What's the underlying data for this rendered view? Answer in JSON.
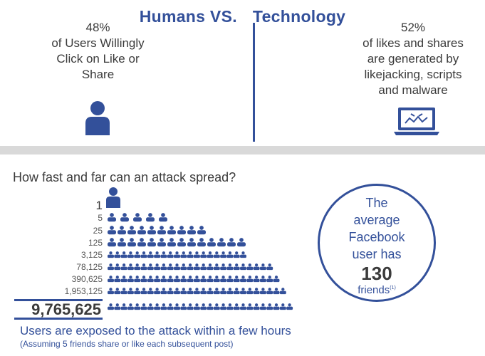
{
  "header": {
    "title_left": "Humans VS.",
    "title_right": "Technology"
  },
  "left_stat": {
    "percent": "48%",
    "line1": "of Users Willingly",
    "line2": "Click on Like or",
    "line3": "Share"
  },
  "right_stat": {
    "percent": "52%",
    "line1": "of likes and shares",
    "line2": "are generated by",
    "line3": "likejacking, scripts",
    "line4": "and malware"
  },
  "spread": {
    "question": "How fast and far can an attack spread?",
    "rows": [
      {
        "label": "1",
        "icons": 1
      },
      {
        "label": "5",
        "icons": 5
      },
      {
        "label": "25",
        "icons": 10
      },
      {
        "label": "125",
        "icons": 14
      },
      {
        "label": "3,125",
        "icons": 21
      },
      {
        "label": "78,125",
        "icons": 25
      },
      {
        "label": "390,625",
        "icons": 26
      },
      {
        "label": "1,953,125",
        "icons": 27
      },
      {
        "label": "9,765,625",
        "icons": 28
      }
    ],
    "footer_main": "Users are exposed to the attack within a few hours",
    "footer_note": "(Assuming 5 friends share or like each subsequent post)"
  },
  "circle": {
    "line1": "The",
    "line2": "average",
    "line3": "Facebook",
    "line4": "user has",
    "number": "130",
    "line5": "friends",
    "footnote": "(1)"
  },
  "colors": {
    "accent": "#33509a",
    "band": "#d9d9d9",
    "text": "#3b3b3b"
  },
  "icons": {
    "person": "person-icon",
    "laptop": "laptop-malware-icon"
  }
}
